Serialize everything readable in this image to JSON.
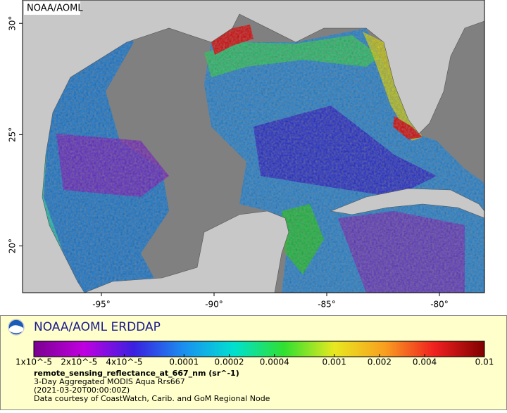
{
  "map": {
    "corner_label": "NOAA/AOML",
    "xlim": [
      -98.5,
      -78
    ],
    "ylim": [
      17.9,
      31.05
    ],
    "xticks": [
      {
        "value": -95,
        "label": "-95°"
      },
      {
        "value": -90,
        "label": "-90°"
      },
      {
        "value": -85,
        "label": "-85°"
      },
      {
        "value": -80,
        "label": "-80°"
      }
    ],
    "yticks": [
      {
        "value": 20,
        "label": "20°"
      },
      {
        "value": 25,
        "label": "25°"
      },
      {
        "value": 30,
        "label": "30°"
      }
    ]
  },
  "legend": {
    "title": "NOAA/AOML ERDDAP",
    "colorbar": {
      "scale": "log",
      "lim": [
        1e-05,
        0.01
      ],
      "colors": [
        "#7a0090",
        "#c000e0",
        "#3a20e0",
        "#1a90f0",
        "#00e0d0",
        "#30e030",
        "#e8e820",
        "#f8a020",
        "#f02020",
        "#800000"
      ],
      "ticks": [
        {
          "value": 1e-05,
          "label": "1x10^-5"
        },
        {
          "value": 2e-05,
          "label": "2x10^-5"
        },
        {
          "value": 4e-05,
          "label": "4x10^-5"
        },
        0.0001,
        0.0002,
        0.0004,
        0.001,
        0.002,
        0.004,
        0.01
      ]
    },
    "variable": "remote_sensing_reflectance_at_667_nm (sr^-1)",
    "lines": [
      "3-Day Aggregated MODIS Aqua Rrs667",
      "(2021-03-20T00:00:00Z)",
      "Data courtesy of CoastWatch, Carib. and GoM Regional Node"
    ]
  }
}
